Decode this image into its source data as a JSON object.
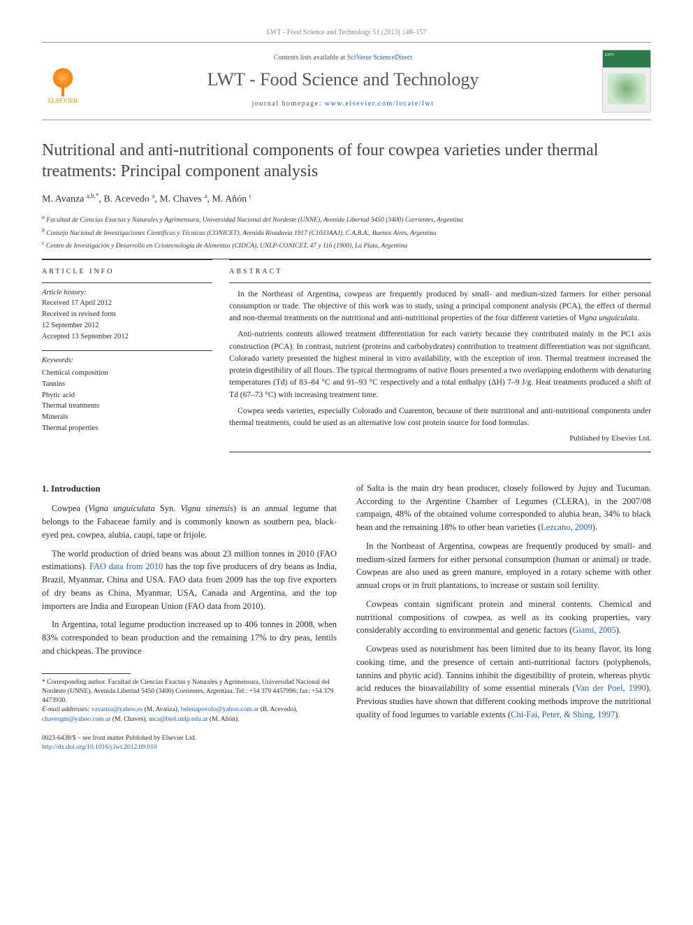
{
  "citation": "LWT - Food Science and Technology 51 (2013) 148–157",
  "masthead": {
    "contents_prefix": "Contents lists available at ",
    "contents_link": "SciVerse ScienceDirect",
    "journal": "LWT - Food Science and Technology",
    "homepage_prefix": "journal homepage: ",
    "homepage_url": "www.elsevier.com/locate/lwt",
    "publisher_logo_label": "ELSEVIER",
    "cover_label": "LWT-"
  },
  "article": {
    "title": "Nutritional and anti-nutritional components of four cowpea varieties under thermal treatments: Principal component analysis",
    "authors_html": "M. Avanza <sup>a,b,*</sup>, B. Acevedo <sup>a</sup>, M. Chaves <sup>a</sup>, M. Añón <sup>c</sup>",
    "affiliations": [
      "a Facultad de Ciencias Exactas y Naturales y Agrimensura, Universidad Nacional del Nordeste (UNNE), Avenida Libertad 5450 (3400) Corrientes, Argentina",
      "b Consejo Nacional de Investigaciones Científicas y Técnicas (CONICET), Avenida Rivadavia 1917 (C1033AAJ), C.A.B.A., Buenos Aires, Argentina",
      "c Centro de Investigación y Desarrollo en Criotecnología de Alimentos (CIDCA), UNLP-CONICET, 47 y 116 (1900), La Plata, Argentina"
    ]
  },
  "article_info": {
    "label": "ARTICLE INFO",
    "history_label": "Article history:",
    "history": [
      "Received 17 April 2012",
      "Received in revised form",
      "12 September 2012",
      "Accepted 13 September 2012"
    ],
    "keywords_label": "Keywords:",
    "keywords": [
      "Chemical composition",
      "Tannins",
      "Phytic acid",
      "Thermal treatments",
      "Minerals",
      "Thermal properties"
    ]
  },
  "abstract": {
    "label": "ABSTRACT",
    "paragraphs": [
      "In the Northeast of Argentina, cowpeas are frequently produced by small- and medium-sized farmers for either personal consumption or trade. The objective of this work was to study, using a principal component analysis (PCA), the effect of thermal and non-thermal treatments on the nutritional and anti-nutritional properties of the four different varieties of Vigna unguiculata.",
      "Anti-nutrients contents allowed treatment differentiation for each variety because they contributed mainly in the PC1 axis construction (PCA). In contrast, nutrient (proteins and carbohydrates) contribution to treatment differentiation was not significant. Colorado variety presented the highest mineral in vitro availability, with the exception of iron. Thermal treatment increased the protein digestibility of all flours. The typical thermograms of native flours presented a two overlapping endotherm with denaturing temperatures (Td) of 83–84 °C and 91–93 °C respectively and a total enthalpy (ΔH) 7–9 J/g. Heat treatments produced a shift of Td (67–73 °C) with increasing treatment time.",
      "Cowpea seeds varieties, especially Colorado and Cuarenton, because of their nutritional and anti-nutritional components under thermal treatments, could be used as an alternative low cost protein source for food formulas."
    ],
    "published_by": "Published by Elsevier Ltd."
  },
  "body": {
    "section_heading": "1. Introduction",
    "left_paragraphs": [
      "Cowpea (Vigna unguiculata Syn. Vigna sinensis) is an annual legume that belongs to the Fabaceae family and is commonly known as southern pea, black-eyed pea, cowpea, alubia, caupi, tape or frijole.",
      "The world production of dried beans was about 23 million tonnes in 2010 (FAO estimations). FAO data from 2010 has the top five producers of dry beans as India, Brazil, Myanmar, China and USA. FAO data from 2009 has the top five exporters of dry beans as China, Myanmar, USA, Canada and Argentina, and the top importers are India and European Union (FAO data from 2010).",
      "In Argentina, total legume production increased up to 406 tonnes in 2008, when 83% corresponded to bean production and the remaining 17% to dry peas, lentils and chickpeas. The province"
    ],
    "right_paragraphs": [
      "of Salta is the main dry bean producer, closely followed by Jujuy and Tucuman. According to the Argentine Chamber of Legumes (CLERA), in the 2007/08 campaign, 48% of the obtained volume corresponded to alubia bean, 34% to black bean and the remaining 18% to other bean varieties (Lezcano, 2009).",
      "In the Northeast of Argentina, cowpeas are frequently produced by small- and medium-sized farmers for either personal consumption (human or animal) or trade. Cowpeas are also used as green manure, employed in a rotary scheme with other annual crops or in fruit plantations, to increase or sustain soil fertility.",
      "Cowpeas contain significant protein and mineral contents. Chemical and nutritional compositions of cowpea, as well as its cooking properties, vary considerably according to environmental and genetic factors (Giami, 2005).",
      "Cowpeas used as nourishment has been limited due to its beany flavor, its long cooking time, and the presence of certain anti-nutritional factors (polyphenols, tannins and phytic acid). Tannins inhibit the digestibility of protein, whereas phytic acid reduces the bioavailability of some essential minerals (Van der Poel, 1990). Previous studies have shown that different cooking methods improve the nutritional quality of food legumes to variable extents (Chi-Fai, Peter, & Shing, 1997)."
    ]
  },
  "footnotes": {
    "corresponding": "* Corresponding author. Facultad de Ciencias Exactas y Naturales y Agrimensura, Universidad Nacional del Nordeste (UNNE), Avenida Libertad 5450 (3400) Corrientes, Argentina. Tel.: +54 379 4457996; fax: +54 379 4473930.",
    "emails_label": "E-mail addresses:",
    "emails": [
      {
        "addr": "vavanza@yahoo.es",
        "who": "(M. Avanza),"
      },
      {
        "addr": "belenapovolo@yahoo.com.ar",
        "who": "(B. Acevedo),"
      },
      {
        "addr": "chavesgm@yahoo.com.ar",
        "who": "(M. Chaves),"
      },
      {
        "addr": "mca@biol.unlp.edu.ar",
        "who": "(M. Añón)."
      }
    ]
  },
  "copyright": {
    "line1": "0023-6438/$ – see front matter Published by Elsevier Ltd.",
    "doi": "http://dx.doi.org/10.1016/j.lwt.2012.09.010"
  },
  "refs_inline": {
    "fao": "FAO data from 2010",
    "lezcano": "Lezcano, 2009",
    "giami": "Giami, 2005",
    "vanderpoel": "Van der Poel, 1990",
    "chifai": "Chi-Fai, Peter, & Shing, 1997"
  }
}
